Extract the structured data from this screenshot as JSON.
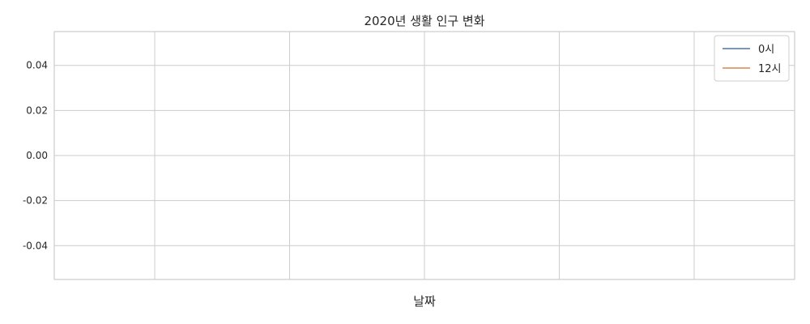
{
  "chart_data": {
    "type": "line",
    "title": "2020년 생활 인구 변화",
    "xlabel": "날짜",
    "ylabel": "",
    "ylim": [
      -0.055,
      0.055
    ],
    "yticks": [
      "-0.04",
      "-0.02",
      "0.00",
      "0.02",
      "0.04"
    ],
    "ytick_values": [
      -0.04,
      -0.02,
      0.0,
      0.02,
      0.04
    ],
    "xtick_count": 5,
    "grid": true,
    "legend_position": "top-right",
    "series": [
      {
        "name": "0시",
        "color": "#4c72b0",
        "x": [],
        "values": []
      },
      {
        "name": "12시",
        "color": "#dd8452",
        "x": [],
        "values": []
      }
    ]
  }
}
